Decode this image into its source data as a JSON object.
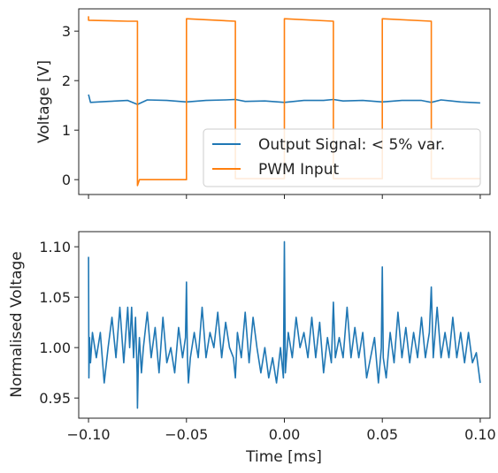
{
  "chart_data": [
    {
      "type": "line",
      "title": "",
      "xlabel": "",
      "ylabel": "Voltage [V]",
      "xlim": [
        -0.105,
        0.105
      ],
      "ylim": [
        -0.3,
        3.45
      ],
      "xticks": [
        -0.1,
        -0.05,
        0.0,
        0.05,
        0.1
      ],
      "yticks": [
        0,
        1,
        2,
        3
      ],
      "ytick_labels": [
        "0",
        "1",
        "2",
        "3"
      ],
      "grid": false,
      "legend_position": "lower-right",
      "series": [
        {
          "name": "Output Signal: < 5% var.",
          "color": "#1f77b4",
          "x": [
            -0.1,
            -0.099,
            -0.09,
            -0.08,
            -0.075,
            -0.07,
            -0.06,
            -0.05,
            -0.04,
            -0.03,
            -0.025,
            -0.02,
            -0.01,
            0.0,
            0.01,
            0.02,
            0.025,
            0.03,
            0.04,
            0.05,
            0.06,
            0.07,
            0.075,
            0.08,
            0.09,
            0.1
          ],
          "y": [
            1.72,
            1.56,
            1.58,
            1.6,
            1.52,
            1.61,
            1.6,
            1.57,
            1.6,
            1.61,
            1.62,
            1.58,
            1.59,
            1.56,
            1.6,
            1.6,
            1.62,
            1.59,
            1.6,
            1.57,
            1.6,
            1.6,
            1.56,
            1.61,
            1.57,
            1.55
          ]
        },
        {
          "name": "PWM Input",
          "color": "#ff7f0e",
          "x": [
            -0.1,
            -0.1,
            -0.08,
            -0.075,
            -0.075,
            -0.074,
            -0.05,
            -0.05,
            -0.025,
            -0.025,
            0.0,
            0.0,
            0.025,
            0.025,
            0.05,
            0.05,
            0.075,
            0.075,
            0.1
          ],
          "y": [
            3.3,
            3.22,
            3.2,
            3.2,
            -0.12,
            0.0,
            0.0,
            3.25,
            3.2,
            0.02,
            0.02,
            3.25,
            3.2,
            0.02,
            0.02,
            3.25,
            3.2,
            0.02,
            0.02
          ]
        }
      ]
    },
    {
      "type": "line",
      "title": "",
      "xlabel": "Time [ms]",
      "ylabel": "Normalised Voltage",
      "xlim": [
        -0.105,
        0.105
      ],
      "ylim": [
        0.93,
        1.115
      ],
      "xticks": [
        -0.1,
        -0.05,
        0.0,
        0.05,
        0.1
      ],
      "xtick_labels": [
        "−0.10",
        "−0.05",
        "0.00",
        "0.05",
        "0.10"
      ],
      "yticks": [
        0.95,
        1.0,
        1.05,
        1.1
      ],
      "ytick_labels": [
        "0.95",
        "1.00",
        "1.05",
        "1.10"
      ],
      "grid": false,
      "series": [
        {
          "color": "#1f77b4",
          "x": [
            -0.1,
            -0.0998,
            -0.0995,
            -0.099,
            -0.098,
            -0.096,
            -0.094,
            -0.092,
            -0.09,
            -0.088,
            -0.086,
            -0.084,
            -0.082,
            -0.08,
            -0.079,
            -0.078,
            -0.077,
            -0.076,
            -0.0752,
            -0.075,
            -0.0745,
            -0.074,
            -0.073,
            -0.072,
            -0.07,
            -0.068,
            -0.066,
            -0.064,
            -0.062,
            -0.06,
            -0.058,
            -0.056,
            -0.054,
            -0.052,
            -0.0505,
            -0.05,
            -0.0495,
            -0.049,
            -0.048,
            -0.046,
            -0.044,
            -0.042,
            -0.04,
            -0.038,
            -0.036,
            -0.034,
            -0.032,
            -0.03,
            -0.028,
            -0.026,
            -0.025,
            -0.024,
            -0.022,
            -0.02,
            -0.018,
            -0.016,
            -0.014,
            -0.012,
            -0.01,
            -0.008,
            -0.006,
            -0.004,
            -0.002,
            -0.0005,
            0.0,
            0.0005,
            0.002,
            0.004,
            0.006,
            0.008,
            0.01,
            0.012,
            0.014,
            0.016,
            0.018,
            0.02,
            0.022,
            0.024,
            0.025,
            0.026,
            0.028,
            0.03,
            0.032,
            0.034,
            0.036,
            0.038,
            0.04,
            0.042,
            0.044,
            0.046,
            0.048,
            0.0495,
            0.05,
            0.0505,
            0.052,
            0.054,
            0.056,
            0.058,
            0.06,
            0.062,
            0.064,
            0.066,
            0.068,
            0.07,
            0.072,
            0.074,
            0.075,
            0.076,
            0.078,
            0.08,
            0.082,
            0.084,
            0.086,
            0.088,
            0.09,
            0.092,
            0.094,
            0.096,
            0.098,
            0.1
          ],
          "y": [
            1.09,
            0.97,
            1.01,
            0.985,
            1.015,
            0.99,
            1.015,
            0.965,
            1.0,
            1.03,
            0.99,
            1.04,
            0.985,
            1.04,
            1.0,
            1.04,
            0.99,
            1.03,
            0.975,
            0.94,
            0.99,
            1.01,
            0.975,
            1.0,
            1.035,
            0.99,
            1.02,
            0.975,
            1.03,
            0.985,
            1.0,
            0.975,
            1.02,
            0.99,
            1.01,
            1.065,
            0.99,
            0.965,
            0.99,
            1.015,
            0.99,
            1.04,
            0.99,
            1.015,
            1.0,
            1.035,
            0.99,
            1.025,
            1.0,
            0.99,
            0.97,
            1.015,
            0.99,
            1.035,
            0.985,
            1.03,
            1.0,
            0.975,
            1.0,
            0.97,
            0.99,
            0.965,
            1.0,
            0.97,
            1.105,
            0.975,
            1.015,
            0.99,
            1.03,
            1.0,
            1.015,
            0.99,
            1.03,
            0.99,
            1.025,
            0.975,
            1.01,
            0.985,
            1.045,
            0.99,
            1.01,
            0.99,
            1.04,
            0.99,
            1.02,
            0.99,
            1.015,
            0.97,
            0.99,
            1.01,
            0.965,
            1.0,
            1.08,
            0.99,
            0.97,
            1.015,
            0.985,
            1.035,
            0.99,
            1.02,
            0.985,
            1.015,
            0.99,
            1.03,
            0.99,
            1.015,
            1.06,
            0.99,
            1.04,
            0.99,
            1.015,
            0.99,
            1.03,
            0.99,
            1.015,
            0.985,
            1.015,
            0.985,
            0.995,
            0.965
          ]
        }
      ]
    }
  ]
}
